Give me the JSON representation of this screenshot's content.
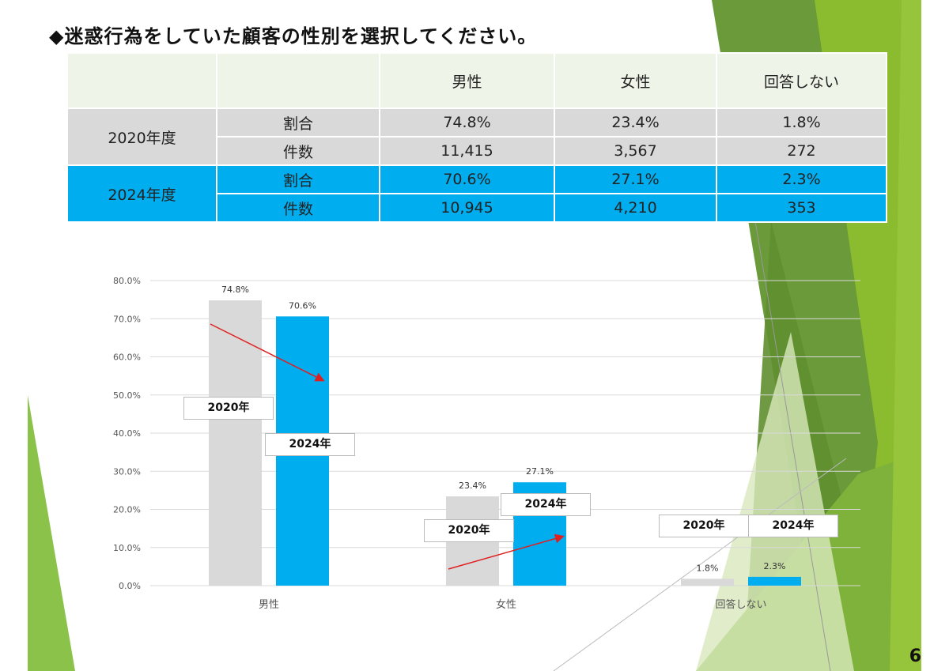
{
  "title": "◆迷惑行為をしていた顧客の性別を選択してください。",
  "table": {
    "headers": [
      "",
      "",
      "男性",
      "女性",
      "回答しない"
    ],
    "rows": [
      {
        "year": "2020年度",
        "metric": "割合",
        "values": [
          "74.8%",
          "23.4%",
          "1.8%"
        ]
      },
      {
        "year": "",
        "metric": "件数",
        "values": [
          "11,415",
          "3,567",
          "272"
        ]
      },
      {
        "year": "2024年度",
        "metric": "割合",
        "values": [
          "70.6%",
          "27.1%",
          "2.3%"
        ]
      },
      {
        "year": "",
        "metric": "件数",
        "values": [
          "10,945",
          "4,210",
          "353"
        ]
      }
    ]
  },
  "chart_data": {
    "type": "bar",
    "categories": [
      "男性",
      "女性",
      "回答しない"
    ],
    "series": [
      {
        "name": "2020年",
        "values": [
          74.8,
          23.4,
          1.8
        ],
        "labels": [
          "74.8%",
          "23.4%",
          "1.8%"
        ],
        "color": "#d9d9d9"
      },
      {
        "name": "2024年",
        "values": [
          70.6,
          27.1,
          2.3
        ],
        "labels": [
          "70.6%",
          "27.1%",
          "2.3%"
        ],
        "color": "#00adef"
      }
    ],
    "ylim": [
      0,
      80
    ],
    "yticks": [
      "0.0%",
      "10.0%",
      "20.0%",
      "30.0%",
      "40.0%",
      "50.0%",
      "60.0%",
      "70.0%",
      "80.0%"
    ],
    "grid": true,
    "annotation_arrow_color": "#e02020"
  },
  "page_number": "6"
}
